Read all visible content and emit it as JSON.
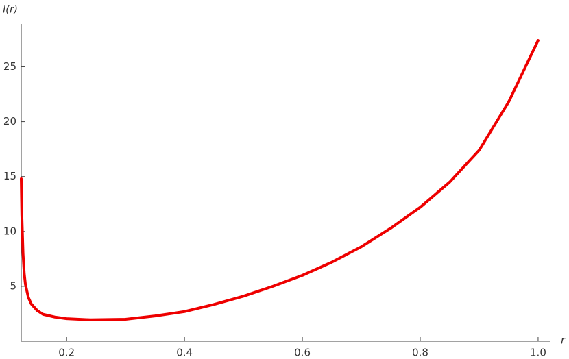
{
  "chart_data": {
    "type": "line",
    "x_label": "r",
    "y_label": "l(r)",
    "x": [
      0.123,
      0.124,
      0.126,
      0.128,
      0.13,
      0.135,
      0.14,
      0.15,
      0.16,
      0.18,
      0.2,
      0.24,
      0.3,
      0.35,
      0.4,
      0.45,
      0.5,
      0.55,
      0.6,
      0.65,
      0.7,
      0.75,
      0.8,
      0.85,
      0.9,
      0.95,
      1.0
    ],
    "series": [
      {
        "color": "#ee0000",
        "values": [
          14.8,
          11.5,
          8.0,
          6.2,
          5.2,
          4.0,
          3.4,
          2.8,
          2.45,
          2.2,
          2.05,
          1.95,
          2.0,
          2.3,
          2.7,
          3.35,
          4.1,
          5.0,
          6.0,
          7.2,
          8.6,
          10.3,
          12.2,
          14.5,
          17.4,
          21.8,
          27.4
        ]
      }
    ],
    "xlim": [
      0.123,
      1.021
    ],
    "ylim": [
      0,
      28.9
    ],
    "xticks": [
      0.2,
      0.4,
      0.6,
      0.8,
      {
        "value": 1,
        "label": "1.0"
      }
    ],
    "yticks": [
      5,
      10,
      15,
      20,
      25
    ]
  }
}
